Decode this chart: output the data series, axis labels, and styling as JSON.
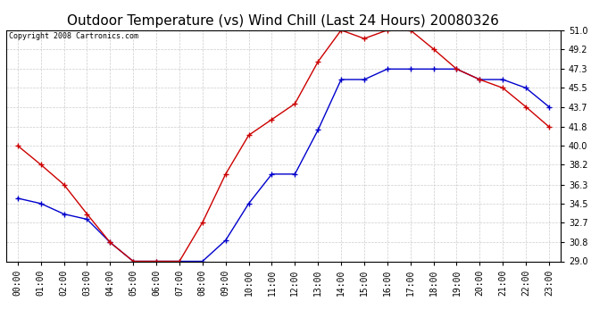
{
  "title": "Outdoor Temperature (vs) Wind Chill (Last 24 Hours) 20080326",
  "copyright_text": "Copyright 2008 Cartronics.com",
  "hours": [
    "00:00",
    "01:00",
    "02:00",
    "03:00",
    "04:00",
    "05:00",
    "06:00",
    "07:00",
    "08:00",
    "09:00",
    "10:00",
    "11:00",
    "12:00",
    "13:00",
    "14:00",
    "15:00",
    "16:00",
    "17:00",
    "18:00",
    "19:00",
    "20:00",
    "21:00",
    "22:00",
    "23:00"
  ],
  "outdoor_temp": [
    35.0,
    34.5,
    33.5,
    33.0,
    30.8,
    29.0,
    29.0,
    29.0,
    29.0,
    31.0,
    34.5,
    37.3,
    37.3,
    41.5,
    46.3,
    46.3,
    47.3,
    47.3,
    47.3,
    47.3,
    46.3,
    46.3,
    45.5,
    43.7
  ],
  "wind_chill": [
    40.0,
    38.2,
    36.3,
    33.5,
    30.8,
    29.0,
    29.0,
    29.0,
    32.7,
    37.3,
    41.0,
    42.5,
    44.0,
    48.0,
    51.0,
    50.2,
    51.0,
    51.0,
    49.2,
    47.3,
    46.3,
    45.5,
    43.7,
    41.8
  ],
  "outdoor_color": "#0000cc",
  "windchill_color": "#cc0000",
  "ylim_min": 29.0,
  "ylim_max": 51.0,
  "yticks": [
    29.0,
    30.8,
    32.7,
    34.5,
    36.3,
    38.2,
    40.0,
    41.8,
    43.7,
    45.5,
    47.3,
    49.2,
    51.0
  ],
  "background_color": "#ffffff",
  "grid_color": "#cccccc",
  "title_fontsize": 11,
  "tick_fontsize": 7,
  "copyright_fontsize": 6
}
